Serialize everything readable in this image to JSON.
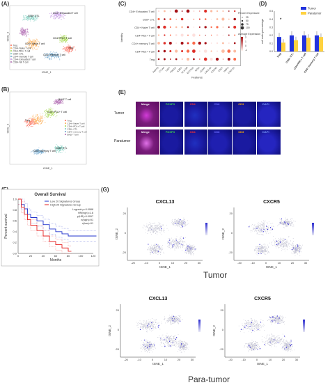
{
  "panels": {
    "A": {
      "letter": "(A)",
      "xlabel": "tSNE_1",
      "ylabel": "tSNE_2",
      "clusters": [
        {
          "name": "CD4+ Exhausted T cell",
          "color": "#c9a0e8"
        },
        {
          "name": "CD8+ CTL",
          "color": "#8dd3c7"
        },
        {
          "name": "CD4+PD1+ T cell",
          "color": "#b3de69"
        },
        {
          "name": "Treg",
          "color": "#fb8072"
        },
        {
          "name": "CD4+ memory T cell",
          "color": "#80b1d3"
        },
        {
          "name": "CD4+ Naive T cell",
          "color": "#fdb462"
        },
        {
          "name": "CD8+ NK T cell",
          "color": "#bc80bd"
        }
      ],
      "legend": [
        "Treg",
        "CD4+ Naive T cell",
        "CD4+PD1+ T cell",
        "CD8+ CTL",
        "CD4+ memory T cell",
        "CD4+ Exhausted T cell",
        "CD8+ NK T cell"
      ]
    },
    "B": {
      "letter": "(B)",
      "xlabel": "tSNE_1",
      "ylabel": "tSNE_2",
      "legend": [
        "Treg",
        "CD4+ Naive T cell",
        "CD4+ PD1+ T cell",
        "CD8+ CTL",
        "CD4+ memory T cell",
        "BHLF T cell"
      ],
      "labels": [
        "BHLF T cell",
        "CD4+ PD1+ T cell",
        "Treg",
        "CD4+ memory T cell",
        "CD8+ CTL"
      ]
    },
    "C": {
      "letter": "(C)",
      "ylabel": "Identity",
      "xlabel": "Features",
      "rows": [
        "CD4+ Exhausted T cell",
        "CD8+ CTL",
        "CD4+ Naive T cell",
        "CD4+PD1+ T cell",
        "CD4+ memory T cell",
        "CD4+PD1+ T cell",
        "Treg"
      ],
      "features": [
        "FOXP3",
        "CTLA4",
        "TIGIT",
        "PDCD1",
        "IL2RA",
        "HLA-DR",
        "ENTPD1",
        "ICOS",
        "CD247",
        "CXCL13",
        "CXCR5",
        "CD27",
        "HOPX",
        "CXCL15"
      ],
      "size_title": "Percent Expressed",
      "size_levels": [
        "25",
        "50",
        "75",
        "100"
      ],
      "color_title": "Average Expression",
      "color_ticks": [
        "2",
        "1",
        "0",
        "-1"
      ]
    },
    "D": {
      "letter": "(D)",
      "ylabel": "cell ratio percentage",
      "legend": [
        {
          "name": "Tumor",
          "color": "#2233dd"
        },
        {
          "name": "Paratumor",
          "color": "#ffd23f"
        }
      ],
      "categories": [
        "Treg",
        "CD8+ CTL",
        "CD4+PD1+ T cell",
        "CD4+ memory T cell"
      ],
      "star": "*",
      "yticks": [
        "0.5",
        "0.4",
        "0.3",
        "0.2",
        "0.1",
        "0.0"
      ]
    },
    "E": {
      "letter": "(E)",
      "channels": [
        {
          "name": "Merge",
          "color": "#ffffff"
        },
        {
          "name": "FOXP3",
          "color": "#3ddc4a"
        },
        {
          "name": "CD4",
          "color": "#ff3030"
        },
        {
          "name": "CD8",
          "color": "#6a6aff"
        },
        {
          "name": "CD3",
          "color": "#ffb000"
        },
        {
          "name": "DAPI",
          "color": "#7a9cff"
        }
      ],
      "rows": [
        "Tumor",
        "Paratumor"
      ]
    },
    "F": {
      "letter": "(F)",
      "title": "Overall Survival",
      "ylabel": "Percent survival",
      "xlabel": "Months",
      "legend": [
        {
          "name": "Low 20 Signatures Group",
          "color": "#2233cc"
        },
        {
          "name": "High 20 Signatures Group",
          "color": "#e62020"
        }
      ],
      "stats": [
        "Logrank p=0.0088",
        "HR(high)=1.6",
        "p(HR)=0.0097",
        "n(high)=91",
        "n(low)=91"
      ],
      "xticks": [
        "0",
        "20",
        "40",
        "60",
        "80",
        "100",
        "120"
      ],
      "yticks": [
        "1.0",
        "0.8",
        "0.6",
        "0.4",
        "0.2",
        "0.0"
      ]
    },
    "G": {
      "letter": "(G)",
      "plots": [
        {
          "title": "CXCL13",
          "xlabel": "tSNE_1",
          "ylabel": "tSNE_2"
        },
        {
          "title": "CXCR5",
          "xlabel": "tSNE_1",
          "ylabel": "tSNE_2"
        },
        {
          "title": "CXCL13",
          "xlabel": "tSNE_1",
          "ylabel": "tSNE_2"
        },
        {
          "title": "CXCR5",
          "xlabel": "tSNE_1",
          "ylabel": "tSNE_2"
        }
      ],
      "group_top": "Tumor",
      "group_bottom": "Para-tumor",
      "xticks": [
        "-20",
        "-10",
        "0",
        "10",
        "20",
        "30"
      ],
      "yticks": [
        "20",
        "0",
        "-20"
      ]
    }
  }
}
